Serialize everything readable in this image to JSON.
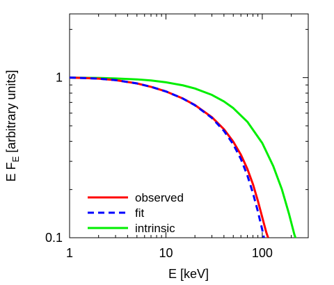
{
  "chart_data": {
    "type": "line",
    "x_scale": "log",
    "y_scale": "log",
    "xlim": [
      1,
      300
    ],
    "ylim": [
      0.1,
      2.5
    ],
    "xlabel": "E [keV]",
    "ylabel": {
      "main": "E F",
      "sub": "E",
      "rest": " [arbitrary units]"
    },
    "x_ticks": [
      {
        "value": 1,
        "label": "1"
      },
      {
        "value": 10,
        "label": "10"
      },
      {
        "value": 100,
        "label": "100"
      }
    ],
    "y_ticks": [
      {
        "value": 0.1,
        "label": "0.1"
      },
      {
        "value": 1,
        "label": "1"
      }
    ],
    "grid": false,
    "legend_position": "bottom-left",
    "series": [
      {
        "name": "observed",
        "color": "#ff0000",
        "dash": "solid",
        "x": [
          1,
          1.5,
          2,
          3,
          5,
          7,
          10,
          15,
          20,
          30,
          40,
          50,
          60,
          70,
          80,
          90,
          100,
          110,
          115
        ],
        "y": [
          1.0,
          0.993,
          0.985,
          0.965,
          0.92,
          0.876,
          0.82,
          0.74,
          0.674,
          0.566,
          0.476,
          0.398,
          0.33,
          0.269,
          0.216,
          0.17,
          0.134,
          0.108,
          0.1
        ]
      },
      {
        "name": "fit",
        "color": "#0000ff",
        "dash": "dashed",
        "x": [
          1,
          1.5,
          2,
          3,
          5,
          7,
          10,
          15,
          20,
          30,
          40,
          50,
          60,
          70,
          80,
          90,
          100,
          104
        ],
        "y": [
          1.0,
          0.993,
          0.985,
          0.965,
          0.92,
          0.876,
          0.82,
          0.74,
          0.672,
          0.56,
          0.465,
          0.383,
          0.31,
          0.245,
          0.19,
          0.146,
          0.112,
          0.1
        ]
      },
      {
        "name": "intrinsic",
        "color": "#00ee00",
        "dash": "solid",
        "x": [
          1,
          2,
          3,
          5,
          7,
          10,
          15,
          20,
          30,
          40,
          50,
          70,
          100,
          130,
          160,
          190,
          215,
          225
        ],
        "y": [
          1.0,
          0.995,
          0.988,
          0.975,
          0.96,
          0.935,
          0.895,
          0.855,
          0.78,
          0.71,
          0.645,
          0.53,
          0.39,
          0.28,
          0.2,
          0.14,
          0.105,
          0.097
        ]
      }
    ]
  }
}
